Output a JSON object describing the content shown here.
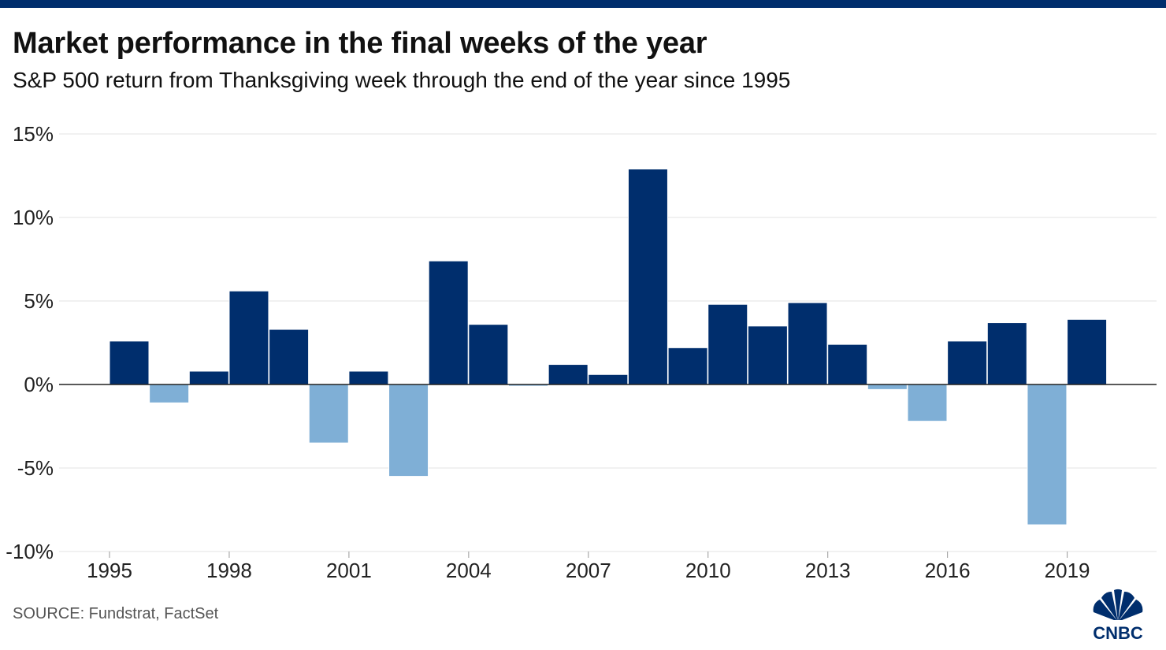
{
  "header": {
    "title": "Market performance in the final weeks of the year",
    "subtitle": "S&P 500 return from Thanksgiving week through the end of the year since 1995"
  },
  "footer": {
    "source": "SOURCE: Fundstrat, FactSet",
    "logo_text": "CNBC"
  },
  "colors": {
    "positive": "#002e6d",
    "negative": "#7fafd6",
    "top_bar": "#002e6d"
  },
  "chart_data": {
    "type": "bar",
    "title": "Market performance in the final weeks of the year",
    "subtitle": "S&P 500 return from Thanksgiving week through the end of the year since 1995",
    "xlabel": "",
    "ylabel": "",
    "ylim": [
      -10,
      15
    ],
    "grid": true,
    "yticks": [
      15,
      10,
      5,
      0,
      -5,
      -10
    ],
    "ytick_labels": [
      "15%",
      "10%",
      "5%",
      "0%",
      "-5%",
      "-10%"
    ],
    "xtick_labels": [
      "1995",
      "1998",
      "2001",
      "2004",
      "2007",
      "2010",
      "2013",
      "2016",
      "2019"
    ],
    "categories": [
      1995,
      1996,
      1997,
      1998,
      1999,
      2000,
      2001,
      2002,
      2003,
      2004,
      2005,
      2006,
      2007,
      2008,
      2009,
      2010,
      2011,
      2012,
      2013,
      2014,
      2015,
      2016,
      2017,
      2018,
      2019
    ],
    "values": [
      2.6,
      -1.1,
      0.8,
      5.6,
      3.3,
      -3.5,
      0.8,
      -5.5,
      7.4,
      3.6,
      -0.1,
      1.2,
      0.6,
      12.9,
      2.2,
      4.8,
      3.5,
      4.9,
      2.4,
      -0.3,
      -2.2,
      2.6,
      3.7,
      -8.4,
      3.9
    ]
  }
}
